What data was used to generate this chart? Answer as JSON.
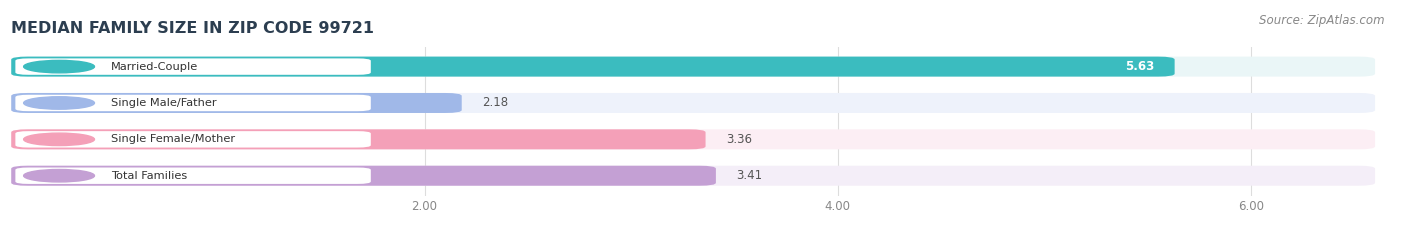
{
  "title": "MEDIAN FAMILY SIZE IN ZIP CODE 99721",
  "source": "Source: ZipAtlas.com",
  "categories": [
    "Married-Couple",
    "Single Male/Father",
    "Single Female/Mother",
    "Total Families"
  ],
  "values": [
    5.63,
    2.18,
    3.36,
    3.41
  ],
  "bar_colors": [
    "#3bbcbf",
    "#a0b8e8",
    "#f4a0b8",
    "#c4a0d4"
  ],
  "bar_bg_colors": [
    "#eaf6f7",
    "#eef2fb",
    "#fceef4",
    "#f4eef8"
  ],
  "dot_colors": [
    "#3bbcbf",
    "#a0b8e8",
    "#f4a0b8",
    "#c4a0d4"
  ],
  "xlim_min": 0,
  "xlim_max": 6.6,
  "xticks": [
    2.0,
    4.0,
    6.0
  ],
  "xtick_labels": [
    "2.00",
    "4.00",
    "6.00"
  ],
  "background_color": "#ffffff",
  "title_color": "#2c3e50",
  "title_fontsize": 11.5,
  "source_fontsize": 8.5,
  "bar_height": 0.55,
  "value_inside_threshold": 5.5
}
